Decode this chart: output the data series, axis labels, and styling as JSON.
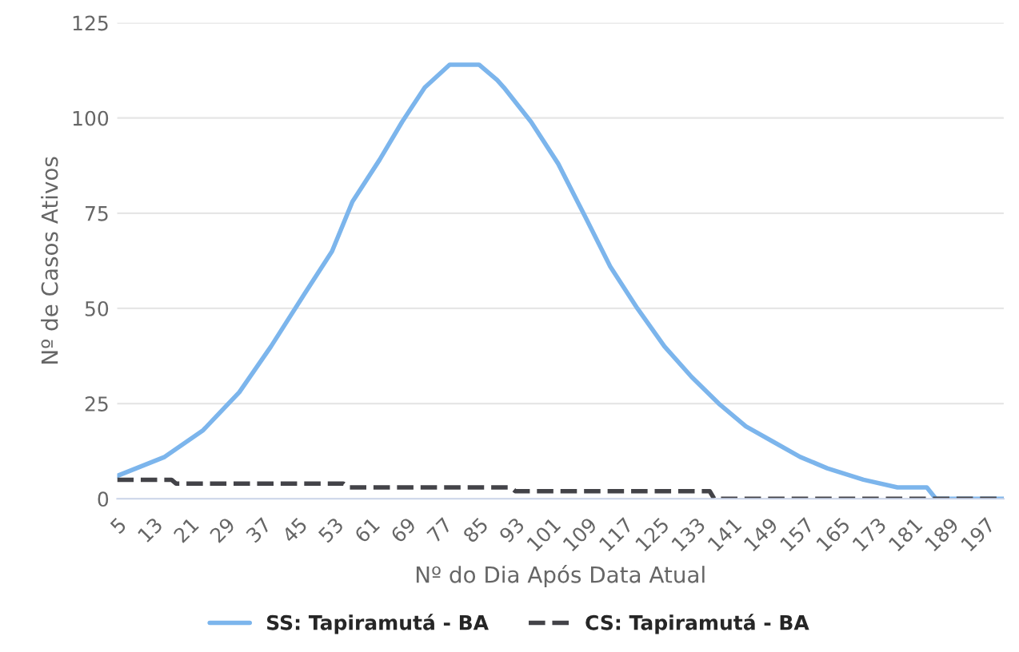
{
  "chart_data": {
    "type": "line",
    "xlabel": "Nº do Dia Após Data Atual",
    "ylabel": "Nº de Casos Ativos",
    "xlim": [
      5,
      201
    ],
    "xticks": [
      5,
      13,
      21,
      29,
      37,
      45,
      53,
      61,
      69,
      77,
      85,
      93,
      101,
      109,
      117,
      125,
      133,
      141,
      149,
      157,
      165,
      173,
      181,
      189,
      197
    ],
    "ylim": [
      0,
      125
    ],
    "yticks": [
      0,
      25,
      50,
      75,
      100,
      125
    ],
    "grid": "y",
    "legend": "bottom",
    "marker": "none",
    "series": [
      {
        "name": "SS: Tapiramutá - BA",
        "color": "#7cb5ec",
        "line_style": "solid",
        "x": [
          5,
          15.5,
          24,
          32,
          39,
          46.5,
          52.5,
          57,
          63,
          68,
          73,
          78.5,
          83.5,
          85,
          89,
          90.5,
          96.5,
          102.5,
          108.5,
          114,
          120,
          126,
          132,
          138,
          144,
          150,
          156,
          162,
          170,
          177.5,
          184,
          186,
          201
        ],
        "values": [
          6,
          11,
          18,
          28,
          40,
          54,
          65,
          78,
          89,
          99,
          108,
          114,
          114,
          114,
          110,
          108,
          99,
          88,
          74,
          61,
          50,
          40,
          32,
          25,
          19,
          15,
          11,
          8,
          5,
          3,
          3,
          0,
          0
        ]
      },
      {
        "name": "CS: Tapiramutá - BA",
        "color": "#434348",
        "line_style": "dashed",
        "x": [
          5,
          17,
          18,
          55,
          56,
          92,
          93,
          136,
          137,
          201
        ],
        "values": [
          5,
          5,
          4,
          4,
          3,
          3,
          2,
          2,
          0,
          0
        ]
      }
    ]
  }
}
